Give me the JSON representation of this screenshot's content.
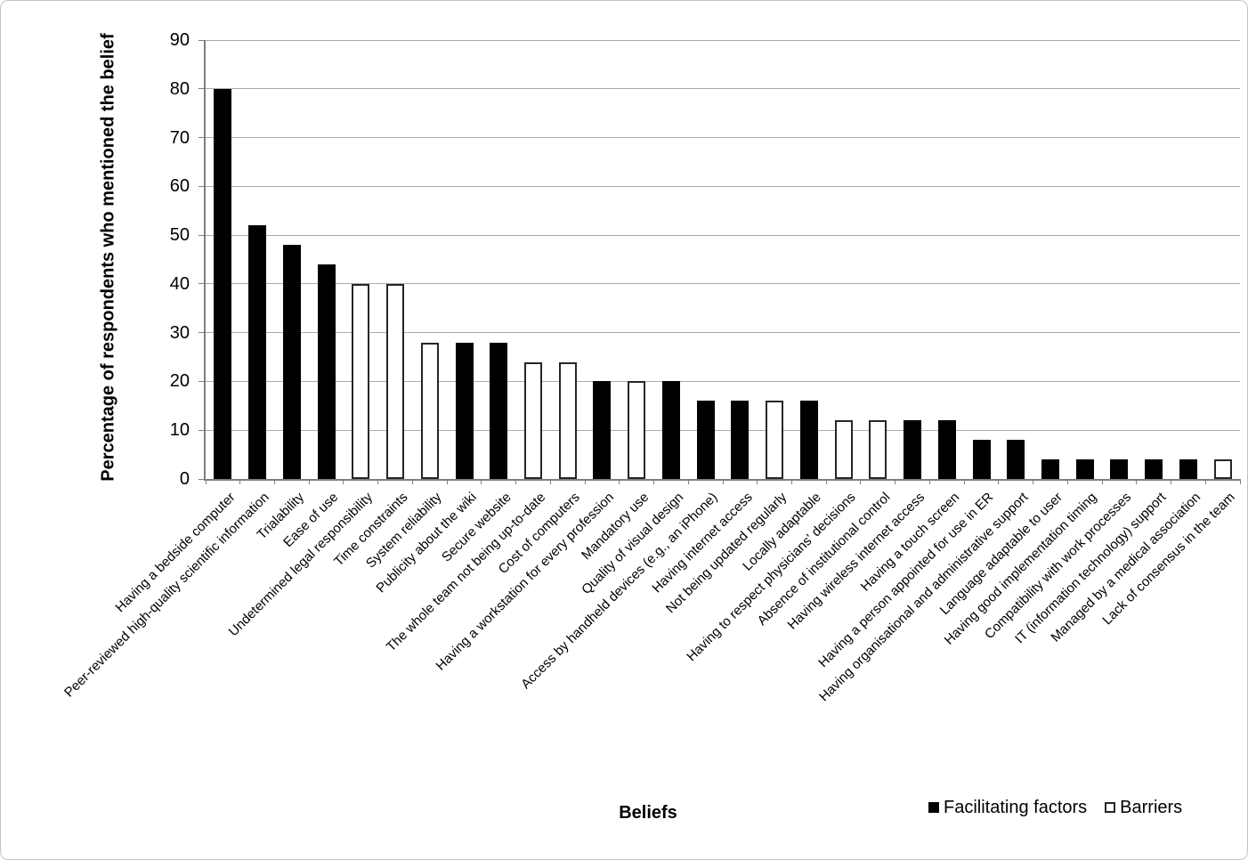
{
  "chart_data": {
    "type": "bar",
    "title": "",
    "xlabel": "Beliefs",
    "ylabel": "Percentage of respondents who mentioned the belief",
    "ylim": [
      0,
      90
    ],
    "yticks": [
      0,
      10,
      20,
      30,
      40,
      50,
      60,
      70,
      80,
      90
    ],
    "grid": "horizontal",
    "legend_position": "bottom-right",
    "legend": [
      {
        "name": "Facilitating factors",
        "fill": "#000000",
        "border": "#000000"
      },
      {
        "name": "Barriers",
        "fill": "#ffffff",
        "border": "#262626"
      }
    ],
    "colors": {
      "gridline": "#ababab",
      "axis": "#7f7f7f",
      "background": "#ffffff"
    },
    "points": [
      {
        "label": "Having a bedside computer",
        "value": 80,
        "series": "Facilitating factors"
      },
      {
        "label": "Peer-reviewed high-quality scientific information",
        "value": 52,
        "series": "Facilitating factors"
      },
      {
        "label": "Trialability",
        "value": 48,
        "series": "Facilitating factors"
      },
      {
        "label": "Ease of use",
        "value": 44,
        "series": "Facilitating factors"
      },
      {
        "label": "Undetermined legal responsibility",
        "value": 40,
        "series": "Barriers"
      },
      {
        "label": "Time constraints",
        "value": 40,
        "series": "Barriers"
      },
      {
        "label": "System reliability",
        "value": 28,
        "series": "Barriers"
      },
      {
        "label": "Publicity about the wiki",
        "value": 28,
        "series": "Facilitating factors"
      },
      {
        "label": "Secure website",
        "value": 28,
        "series": "Facilitating factors"
      },
      {
        "label": "The whole team not being up-to-date",
        "value": 24,
        "series": "Barriers"
      },
      {
        "label": "Cost of computers",
        "value": 24,
        "series": "Barriers"
      },
      {
        "label": "Having a workstation for every profession",
        "value": 20,
        "series": "Facilitating factors"
      },
      {
        "label": "Mandatory use",
        "value": 20,
        "series": "Barriers"
      },
      {
        "label": "Quality of visual design",
        "value": 20,
        "series": "Facilitating factors"
      },
      {
        "label": "Access by handheld devices (e.g., an iPhone)",
        "value": 16,
        "series": "Facilitating factors"
      },
      {
        "label": "Having internet access",
        "value": 16,
        "series": "Facilitating factors"
      },
      {
        "label": "Not being updated regularly",
        "value": 16,
        "series": "Barriers"
      },
      {
        "label": "Locally adaptable",
        "value": 16,
        "series": "Facilitating factors"
      },
      {
        "label": "Having to respect physicians' decisions",
        "value": 12,
        "series": "Barriers"
      },
      {
        "label": "Absence of institutional control",
        "value": 12,
        "series": "Barriers"
      },
      {
        "label": "Having wireless internet access",
        "value": 12,
        "series": "Facilitating factors"
      },
      {
        "label": "Having a touch screen",
        "value": 12,
        "series": "Facilitating factors"
      },
      {
        "label": "Having a person appointed for use in ER",
        "value": 8,
        "series": "Facilitating factors"
      },
      {
        "label": "Having organisational and administrative support",
        "value": 8,
        "series": "Facilitating factors"
      },
      {
        "label": "Language adaptable to user",
        "value": 4,
        "series": "Facilitating factors"
      },
      {
        "label": "Having good implementation timing",
        "value": 4,
        "series": "Facilitating factors"
      },
      {
        "label": "Compatibility with work processes",
        "value": 4,
        "series": "Facilitating factors"
      },
      {
        "label": "IT (information technology) support",
        "value": 4,
        "series": "Facilitating factors"
      },
      {
        "label": "Managed by a medical association",
        "value": 4,
        "series": "Facilitating factors"
      },
      {
        "label": "Lack of consensus in the team",
        "value": 4,
        "series": "Barriers"
      }
    ]
  }
}
